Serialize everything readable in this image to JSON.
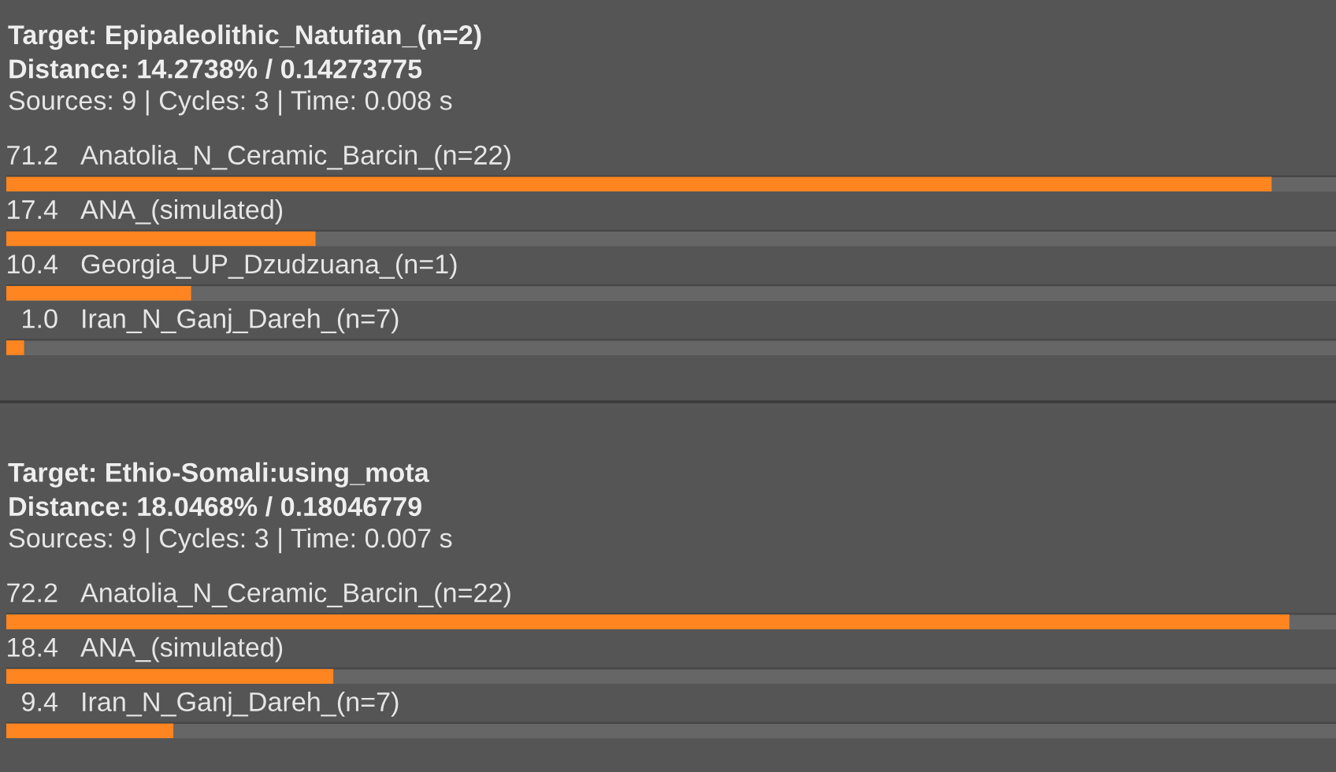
{
  "chart_data": [
    {
      "type": "bar",
      "orientation": "horizontal",
      "title": "Target: Epipaleolithic_Natufian_(n=2)",
      "subtitle": "Distance: 14.2738% / 0.14273775",
      "annotations": [
        "Sources: 9 | Cycles: 3 | Time: 0.008 s"
      ],
      "categories": [
        "Anatolia_N_Ceramic_Barcin_(n=22)",
        "ANA_(simulated)",
        "Georgia_UP_Dzudzuana_(n=1)",
        "Iran_N_Ganj_Dareh_(n=7)"
      ],
      "values": [
        71.2,
        17.4,
        10.4,
        1.0
      ],
      "value_labels": [
        "71.2",
        "17.4",
        "10.4",
        "1.0"
      ],
      "color": "#fe8520"
    },
    {
      "type": "bar",
      "orientation": "horizontal",
      "title": "Target: Ethio-Somali:using_mota",
      "subtitle": "Distance: 18.0468% / 0.18046779",
      "annotations": [
        "Sources: 9 | Cycles: 3 | Time: 0.007 s"
      ],
      "categories": [
        "Anatolia_N_Ceramic_Barcin_(n=22)",
        "ANA_(simulated)",
        "Iran_N_Ganj_Dareh_(n=7)"
      ],
      "values": [
        72.2,
        18.4,
        9.4
      ],
      "color": "#fe8520",
      "data_labels": true
    }
  ]
}
